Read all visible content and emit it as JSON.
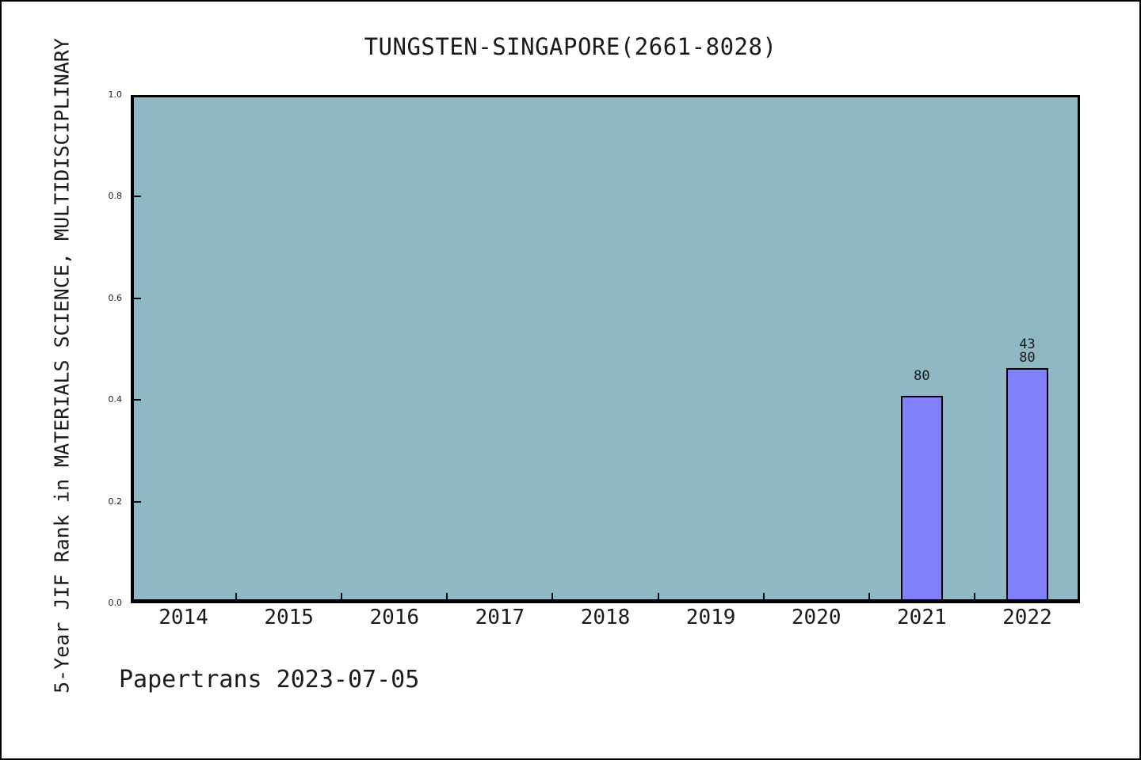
{
  "figure": {
    "footer": "Papertrans 2023-07-05"
  },
  "chart_data": {
    "type": "bar",
    "title": "TUNGSTEN-SINGAPORE(2661-8028)",
    "xlabel": "",
    "ylabel": "5-Year JIF Rank in MATERIALS SCIENCE, MULTIDISCIPLINARY",
    "categories": [
      "2014",
      "2015",
      "2016",
      "2017",
      "2018",
      "2019",
      "2020",
      "2021",
      "2022"
    ],
    "series": [
      {
        "name": "5-Year JIF Rank",
        "values": [
          null,
          null,
          null,
          null,
          null,
          null,
          null,
          0.408,
          0.463
        ]
      }
    ],
    "bar_annotations": [
      {
        "category": "2021",
        "lines": [
          "80"
        ]
      },
      {
        "category": "2022",
        "lines": [
          "43",
          "80"
        ]
      }
    ],
    "ylim": [
      0,
      1
    ],
    "yticks": [
      0.0,
      0.2,
      0.4,
      0.6,
      0.8,
      1.0
    ],
    "ytick_labels": [
      "0.0",
      "0.2",
      "0.4",
      "0.6",
      "0.8",
      "1.0"
    ],
    "grid": false,
    "legend": false,
    "tick_direction": "in",
    "plot_background": "#8fb8c4",
    "bar_color": "#8080fb",
    "bar_edge_color": "#000000"
  }
}
